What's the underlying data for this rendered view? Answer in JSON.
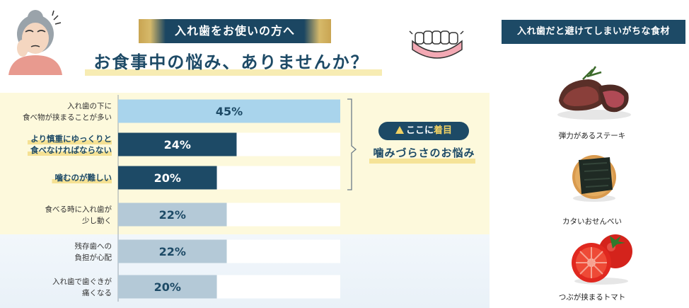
{
  "header": {
    "tag": "入れ歯をお使いの方へ",
    "headline": "お食事中の悩み、ありませんか？"
  },
  "callout": {
    "badge_prefix": "ここに",
    "badge_accent": "着目",
    "text": "噛みづらさのお悩み"
  },
  "side": {
    "title": "入れ歯だと避けてしまいがちな食材",
    "foods": [
      {
        "caption": "弾力があるステーキ",
        "icon": "steak-icon"
      },
      {
        "caption": "カタいおせんべい",
        "icon": "rice-cracker-icon"
      },
      {
        "caption": "つぶが挟まるトマト",
        "icon": "tomato-icon"
      }
    ]
  },
  "colors": {
    "navy": "#1d4a66",
    "light_blue": "#a9d4ec",
    "grey_blue": "#b4c9d7",
    "track": "#ffffff",
    "yellow_band": "#fdf9dc",
    "gold": "#c9a552"
  },
  "chart_data": {
    "type": "bar",
    "orientation": "horizontal",
    "categories": [
      [
        "入れ歯の下に",
        "食べ物が挟まることが多い"
      ],
      [
        "より慎重にゆっくりと",
        "食べなければならない"
      ],
      [
        "噛むのが難しい"
      ],
      [
        "食べる時に入れ歯が",
        "少し動く"
      ],
      [
        "残存歯への",
        "負担が心配"
      ],
      [
        "入れ歯で歯ぐきが",
        "痛くなる"
      ]
    ],
    "values": [
      45,
      24,
      20,
      22,
      22,
      20
    ],
    "value_labels": [
      "45%",
      "24%",
      "20%",
      "22%",
      "22%",
      "20%"
    ],
    "highlighted": [
      false,
      true,
      true,
      false,
      false,
      false
    ],
    "xlim": [
      0,
      45
    ],
    "bar_colors": [
      "#a9d4ec",
      "#1d4a66",
      "#1d4a66",
      "#b4c9d7",
      "#b4c9d7",
      "#b4c9d7"
    ],
    "label_colors": [
      "#1d4a66",
      "#ffffff",
      "#ffffff",
      "#1d4a66",
      "#1d4a66",
      "#1d4a66"
    ]
  }
}
